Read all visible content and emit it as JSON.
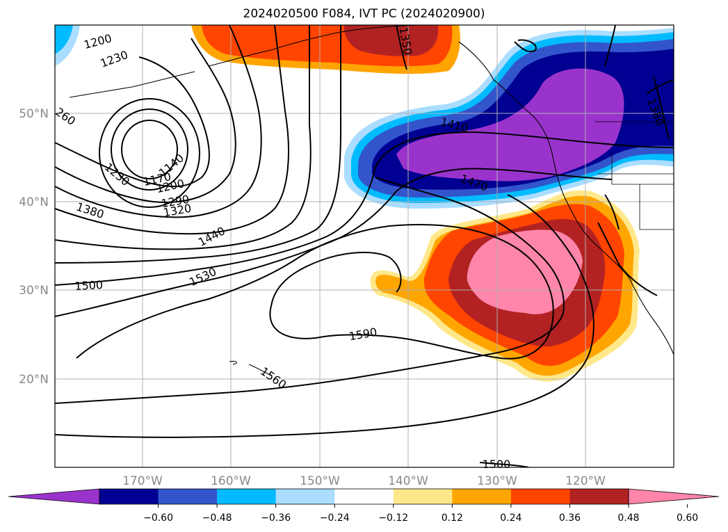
{
  "title": "2024020500 F084, IVT PC (2024020900)",
  "colors": {
    "purple": "#9a33cc",
    "navy": "#000092",
    "blue": "#3355cc",
    "cyan": "#00bbff",
    "lightblue": "#aaddff",
    "white": "#ffffff",
    "lightyellow": "#ffe88a",
    "orange": "#ffa500",
    "redorange": "#ff4500",
    "brick": "#b22222",
    "pink": "#ff85aa",
    "grid": "#b0b0b0",
    "contour": "#000000",
    "ticklabel": "#888888"
  },
  "lat_labels": [
    "50°N",
    "40°N",
    "30°N",
    "20°N"
  ],
  "lon_labels": [
    "170°W",
    "160°W",
    "150°W",
    "140°W",
    "130°W",
    "120°W"
  ],
  "colorbar": {
    "ticks": [
      "−0.60",
      "−0.48",
      "−0.36",
      "−0.24",
      "−0.12",
      "0.12",
      "0.24",
      "0.36",
      "0.48",
      "0.60"
    ],
    "segment_colors": [
      "#9a33cc",
      "#000092",
      "#3355cc",
      "#00bbff",
      "#aaddff",
      "#ffffff",
      "#ffe88a",
      "#ffa500",
      "#ff4500",
      "#b22222",
      "#ff85aa"
    ]
  },
  "contour_labels": {
    "c1200a": "1200",
    "c1230a": "1230",
    "c260": "260",
    "c1350": "1350",
    "c1410": "1410",
    "c1470": "1470",
    "c1380": "1380",
    "c1140": "1140",
    "c1230b": "1230",
    "c1170": "1170",
    "c1200b": "1200",
    "c1290": "1290",
    "c1320": "1320",
    "c1440": "1440",
    "c1530": "1530",
    "c1500a": "1500",
    "c1590": "1590",
    "c1560": "1560",
    "c1500b": "1500",
    "c1380b": "1380"
  }
}
